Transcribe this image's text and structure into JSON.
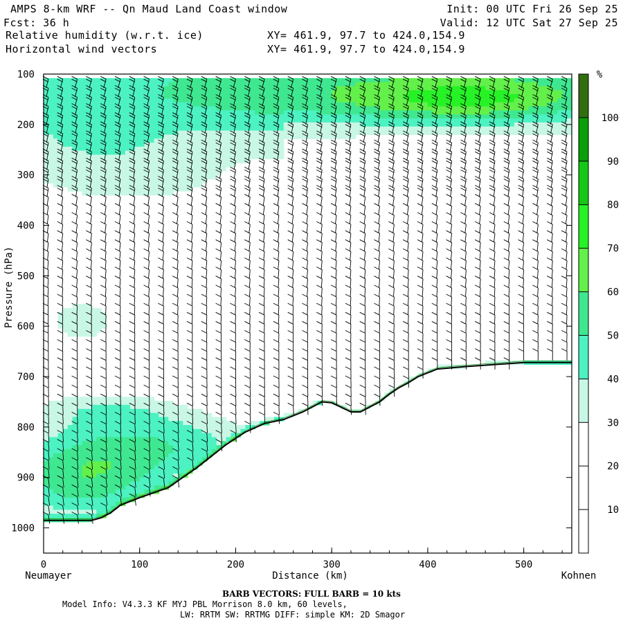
{
  "header": {
    "title": "AMPS 8-km WRF -- Qn Maud Land Coast window",
    "init": "Init: 00 UTC Fri 26 Sep 25",
    "fcst": "Fcst:   36 h",
    "valid": "Valid: 12 UTC Sat 27 Sep 25",
    "field1": "Relative humidity (w.r.t. ice)",
    "xy1": "XY= 461.9, 97.7 to 424.0,154.9",
    "field2": "Horizontal wind vectors",
    "xy2": "XY= 461.9, 97.7 to 424.0,154.9"
  },
  "footer": {
    "barb_note": "BARB VECTORS:  FULL BARB = 10 kts",
    "model_line": "Model Info: V4.3.3   KF      MYJ PBL  Morrison          8.0 km,  60 levels,",
    "physics_line": "LW: RRTM SW: RRTMG   DIFF: simple KM: 2D Smagor"
  },
  "chart_data": {
    "type": "heatmap",
    "title": "Relative humidity (w.r.t. ice) and horizontal wind vectors, cross-section Neumayer to Kohnen",
    "xlabel": "Distance (km)",
    "ylabel": "Pressure (hPa)",
    "xlim": [
      0,
      550
    ],
    "ylim": [
      1050,
      100
    ],
    "x_ticks": [
      "0",
      "100",
      "200",
      "300",
      "400",
      "500"
    ],
    "x_tick_values": [
      0,
      100,
      200,
      300,
      400,
      500
    ],
    "y_ticks": [
      "100",
      "200",
      "300",
      "400",
      "500",
      "600",
      "700",
      "800",
      "900",
      "1000"
    ],
    "y_tick_values": [
      100,
      200,
      300,
      400,
      500,
      600,
      700,
      800,
      900,
      1000
    ],
    "x_start_label": "Neumayer",
    "x_end_label": "Kohnen",
    "colorbar": {
      "unit": "%",
      "levels": [
        10,
        20,
        30,
        40,
        50,
        60,
        70,
        80,
        90,
        100
      ],
      "level_labels": [
        "10",
        "20",
        "30",
        "40",
        "50",
        "60",
        "70",
        "80",
        "90",
        "100"
      ],
      "colors": [
        "#ffffff",
        "#ffffff",
        "#ffffff",
        "#c9f7e6",
        "#4cf2c2",
        "#3fe890",
        "#63f04a",
        "#26f226",
        "#16c816",
        "#099f09",
        "#326e10"
      ]
    },
    "terrain_surface_pressure": {
      "x": [
        0,
        10,
        50,
        60,
        70,
        80,
        100,
        130,
        160,
        190,
        210,
        230,
        250,
        270,
        290,
        300,
        320,
        330,
        350,
        360,
        370,
        380,
        390,
        410,
        440,
        500,
        550
      ],
      "p": [
        985,
        985,
        985,
        980,
        970,
        955,
        940,
        920,
        880,
        835,
        810,
        793,
        785,
        770,
        750,
        752,
        770,
        770,
        750,
        735,
        722,
        712,
        700,
        685,
        680,
        672,
        672
      ]
    },
    "wind_barb_columns_km": [
      5,
      20,
      35,
      50,
      65,
      80,
      95,
      110,
      125,
      140,
      155,
      170,
      185,
      200,
      215,
      230,
      245,
      260,
      275,
      290,
      305,
      320,
      335,
      350,
      365,
      380,
      395,
      410,
      425,
      440,
      455,
      470,
      485,
      500,
      515,
      530,
      545
    ],
    "barb_note": "FULL BARB = 10 kts"
  }
}
